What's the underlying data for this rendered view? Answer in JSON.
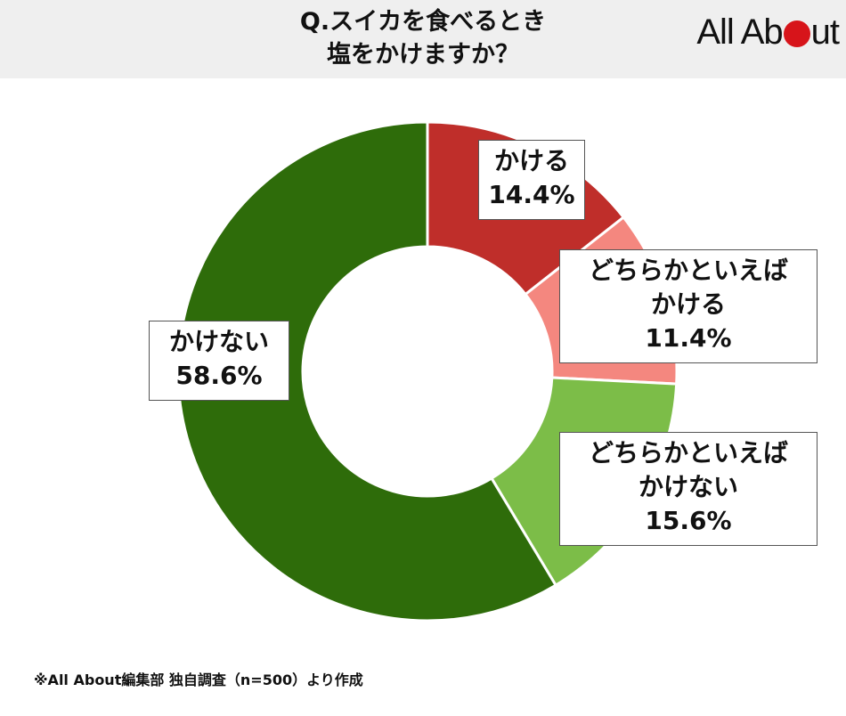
{
  "header": {
    "title_line1": "Q.スイカを食べるとき",
    "title_line2": "塩をかけますか？",
    "logo_part1": "All Ab",
    "logo_part2": "ut"
  },
  "chart_data": {
    "type": "pie",
    "style": "donut",
    "slices": [
      {
        "label": "かける",
        "value": 14.4,
        "display": "14.4%",
        "color": "#bf2e2a"
      },
      {
        "label": "どちらかといえば かける",
        "value": 11.4,
        "display": "11.4%",
        "color": "#f4877f"
      },
      {
        "label": "どちらかといえば かけない",
        "value": 15.6,
        "display": "15.6%",
        "color": "#7cbd48"
      },
      {
        "label": "かけない",
        "value": 58.6,
        "display": "58.6%",
        "color": "#2e6c0a"
      }
    ],
    "labels": [
      {
        "lines": [
          "かける",
          "14.4%"
        ]
      },
      {
        "lines": [
          "どちらかといえば",
          "かける",
          "11.4%"
        ]
      },
      {
        "lines": [
          "どちらかといえば",
          "かけない",
          "15.6%"
        ]
      },
      {
        "lines": [
          "かけない",
          "58.6%"
        ]
      }
    ]
  },
  "footer": {
    "note": "※All About編集部 独自調査（n=500）より作成"
  }
}
